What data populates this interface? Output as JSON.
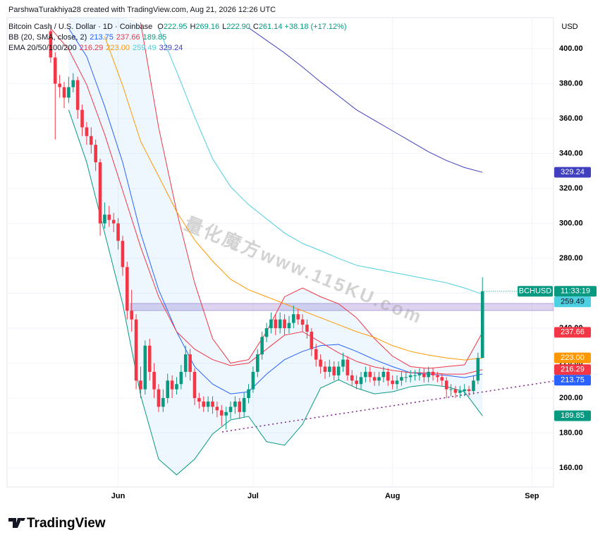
{
  "header": {
    "credit": "ParshwaTurakhiya28 created with TradingView.com, Aug 21, 2026 12:26 UTC",
    "symbol_line": "Bitcoin Cash / U.S. Dollar · 1D · Coinbase",
    "ohlc_letters": [
      "O",
      "H",
      "L",
      "C"
    ],
    "ohlc_values": [
      "222.95",
      "269.16",
      "222.90",
      "261.14"
    ],
    "change": "+38.18 (+17.12%)",
    "bb_title": "BB (20, SMA, close, 2)",
    "ema_title": "EMA 20/50/100/200"
  },
  "chart_data": {
    "type": "candlestick",
    "open": [
      410,
      395,
      380,
      378,
      372,
      378,
      382,
      365,
      355,
      350,
      345,
      335,
      300,
      305,
      302,
      300,
      290,
      275,
      250,
      245,
      210,
      205,
      230,
      215,
      205,
      195,
      200,
      210,
      205,
      208,
      215,
      225,
      215,
      200,
      198,
      195,
      198,
      195,
      193,
      190,
      192,
      195,
      198,
      192,
      200,
      205,
      215,
      225,
      235,
      240,
      245,
      240,
      245,
      240,
      243,
      248,
      245,
      242,
      238,
      228,
      222,
      218,
      215,
      218,
      213,
      218,
      222,
      213,
      210,
      208,
      212,
      215,
      212,
      210,
      212,
      215,
      210,
      208,
      210,
      212,
      212,
      213,
      213,
      214,
      212,
      215,
      213,
      212,
      210,
      205,
      205,
      203,
      204,
      205,
      204,
      210,
      222.95
    ],
    "high": [
      413,
      398,
      385,
      381,
      384,
      386,
      384,
      368,
      358,
      355,
      348,
      337,
      312,
      310,
      306,
      303,
      293,
      278,
      262,
      248,
      218,
      233,
      234,
      220,
      208,
      205,
      214,
      213,
      212,
      219,
      230,
      228,
      217,
      203,
      201,
      201,
      201,
      198,
      196,
      195,
      198,
      201,
      200,
      203,
      208,
      218,
      228,
      238,
      243,
      249,
      248,
      249,
      248,
      247,
      253,
      251,
      248,
      245,
      240,
      231,
      225,
      221,
      222,
      221,
      221,
      226,
      224,
      216,
      213,
      215,
      218,
      218,
      215,
      215,
      218,
      217,
      213,
      213,
      215,
      215,
      216,
      216,
      217,
      217,
      218,
      217,
      215,
      214,
      212,
      208,
      207,
      207,
      208,
      207,
      213,
      226,
      269.16
    ],
    "low": [
      392,
      348,
      372,
      366,
      369,
      375,
      360,
      350,
      345,
      340,
      330,
      293,
      297,
      298,
      295,
      285,
      270,
      245,
      238,
      205,
      200,
      202,
      210,
      200,
      192,
      192,
      197,
      200,
      202,
      205,
      212,
      210,
      196,
      194,
      192,
      192,
      191,
      189,
      184,
      182,
      188,
      191,
      188,
      189,
      197,
      203,
      212,
      222,
      232,
      237,
      236,
      237,
      236,
      237,
      240,
      242,
      238,
      234,
      224,
      218,
      214,
      211,
      212,
      210,
      210,
      215,
      210,
      207,
      205,
      205,
      209,
      209,
      207,
      207,
      209,
      207,
      205,
      205,
      207,
      209,
      209,
      210,
      210,
      209,
      209,
      210,
      209,
      207,
      200,
      201,
      200,
      200,
      201,
      201,
      202,
      208,
      222.9
    ],
    "close": [
      395,
      380,
      378,
      372,
      378,
      382,
      365,
      355,
      350,
      345,
      335,
      300,
      305,
      302,
      300,
      290,
      275,
      250,
      245,
      210,
      205,
      230,
      215,
      205,
      195,
      200,
      210,
      205,
      208,
      215,
      225,
      215,
      200,
      198,
      195,
      198,
      195,
      193,
      190,
      192,
      195,
      198,
      192,
      200,
      205,
      215,
      225,
      235,
      240,
      245,
      240,
      245,
      240,
      243,
      248,
      245,
      242,
      238,
      228,
      222,
      218,
      215,
      218,
      213,
      218,
      222,
      213,
      210,
      208,
      212,
      215,
      212,
      210,
      212,
      215,
      210,
      208,
      210,
      212,
      212,
      213,
      213,
      214,
      212,
      215,
      213,
      212,
      210,
      205,
      205,
      203,
      204,
      205,
      204,
      210,
      222.95,
      261.14
    ],
    "up_color": "#089981",
    "down_color": "#f23645",
    "xlim": [
      -9.7,
      111.8
    ],
    "xticks": [
      {
        "value": 15,
        "label": "Jun"
      },
      {
        "value": 45,
        "label": "Jul"
      },
      {
        "value": 76,
        "label": "Aug"
      },
      {
        "value": 107,
        "label": "Sep"
      }
    ],
    "ylim": [
      149.1,
      417.8
    ],
    "yticks": [
      {
        "value": 160,
        "label": "160.00"
      },
      {
        "value": 180,
        "label": "180.00"
      },
      {
        "value": 200,
        "label": "200.00"
      },
      {
        "value": 220,
        "label": "220.00"
      },
      {
        "value": 240,
        "label": "240.00"
      },
      {
        "value": 260,
        "label": "260.00"
      },
      {
        "value": 280,
        "label": "280.00"
      },
      {
        "value": 300,
        "label": "300.00"
      },
      {
        "value": 320,
        "label": "320.00"
      },
      {
        "value": 340,
        "label": "340.00"
      },
      {
        "value": 360,
        "label": "360.00"
      },
      {
        "value": 380,
        "label": "380.00"
      },
      {
        "value": 400,
        "label": "400.00"
      }
    ],
    "y_unit": "USD",
    "grid": true,
    "symbol": "BCHUSD",
    "countdown": "11:33:19",
    "watermark": "量化魔方www.115KU.com",
    "lines": {
      "x": [
        0,
        4,
        8,
        12,
        16,
        20,
        24,
        28,
        32,
        36,
        40,
        44,
        48,
        52,
        56,
        60,
        64,
        68,
        72,
        76,
        80,
        84,
        88,
        92,
        96
      ],
      "series": [
        {
          "color": "#2962ff",
          "last_label": "213.75",
          "values": [
            null,
            411.7,
            395.6,
            367,
            335,
            294.5,
            262,
            238,
            218,
            208,
            202.4,
            203.6,
            213.7,
            222,
            226.7,
            230,
            230.7,
            226.7,
            222,
            218,
            214.5,
            213.7,
            213,
            211.7,
            213.75
          ]
        },
        {
          "color": "#f23645",
          "last_label": "237.66",
          "values": [
            null,
            null,
            null,
            null,
            null,
            415,
            355,
            307,
            266,
            234,
            220,
            222,
            238,
            258,
            263,
            258,
            254,
            246,
            234,
            224,
            218,
            217,
            218,
            219,
            237.66
          ]
        },
        {
          "color": "#089981",
          "last_label": "189.85",
          "values": [
            null,
            365,
            335,
            294.5,
            254,
            201.6,
            165,
            156,
            165,
            179.4,
            187.5,
            189.5,
            175,
            173,
            185,
            205.7,
            210.5,
            205.7,
            202.4,
            203.6,
            206.5,
            207.7,
            206.5,
            203.6,
            189.85
          ]
        },
        {
          "color": "#f23645",
          "last_label": "216.29",
          "values": [
            411.7,
            399.6,
            379.4,
            351,
            318.8,
            286.5,
            258,
            238,
            228,
            222,
            218.6,
            220,
            228,
            236,
            238,
            232,
            225.9,
            221,
            217.8,
            215.8,
            214.5,
            214.5,
            213.7,
            213.7,
            216.29
          ]
        },
        {
          "color": "#ff9800",
          "last_label": "223.00",
          "values": [
            null,
            null,
            null,
            407,
            379,
            347,
            327,
            306.7,
            290.5,
            278.4,
            268,
            262,
            258,
            254,
            250,
            246,
            242,
            238,
            234.7,
            230,
            226.7,
            224.6,
            223,
            221.8,
            223
          ]
        },
        {
          "color": "#4dd0e1",
          "last_label": "259.49",
          "values": [
            null,
            null,
            null,
            null,
            null,
            null,
            411.7,
            387,
            361,
            337,
            321,
            310.7,
            302.6,
            294.5,
            288.5,
            284.4,
            280,
            276,
            274,
            272,
            270,
            268,
            266,
            263,
            259.49
          ]
        },
        {
          "color": "#3f3fbf",
          "last_label": "329.24",
          "values": [
            null,
            null,
            null,
            null,
            null,
            null,
            null,
            null,
            null,
            null,
            null,
            412,
            404.8,
            397.6,
            389.5,
            381,
            373,
            365,
            359,
            353,
            347,
            341,
            336,
            332,
            329.24
          ]
        }
      ]
    }
  },
  "footer": {
    "brand": "TradingView"
  }
}
